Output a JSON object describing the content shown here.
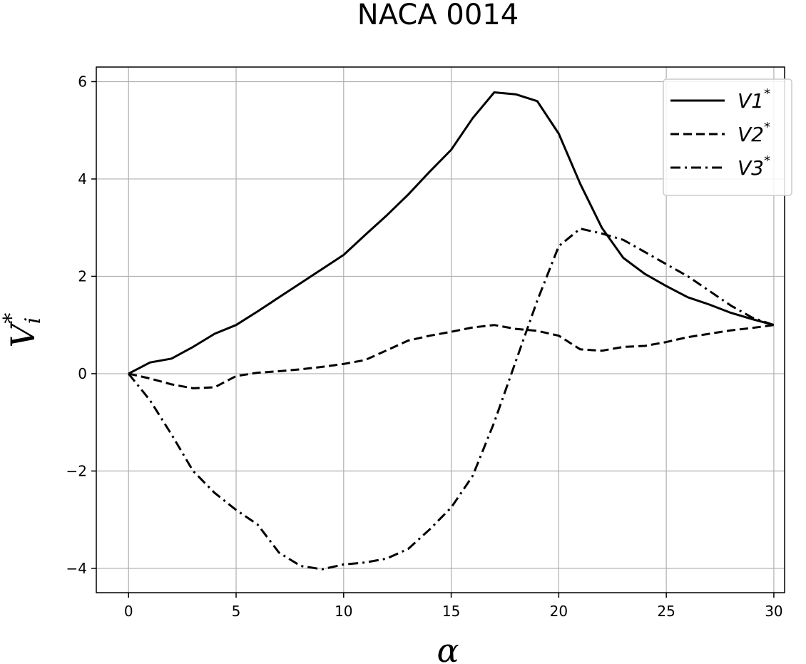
{
  "chart_data": {
    "type": "line",
    "title": "NACA 0014",
    "xlabel": "α",
    "ylabel_base": "V",
    "ylabel_sub": "i",
    "ylabel_sup": "*",
    "xlim": [
      -1.5,
      30.5
    ],
    "ylim": [
      -4.5,
      6.3
    ],
    "xticks": [
      0,
      5,
      10,
      15,
      20,
      25,
      30
    ],
    "xtick_labels": [
      "0",
      "5",
      "10",
      "15",
      "20",
      "25",
      "30"
    ],
    "yticks": [
      -4,
      -2,
      0,
      2,
      4,
      6
    ],
    "ytick_labels": [
      "−4",
      "−2",
      "0",
      "2",
      "4",
      "6"
    ],
    "grid": true,
    "legend_position": "top-right",
    "x": [
      0,
      1,
      2,
      3,
      4,
      5,
      6,
      7,
      8,
      9,
      10,
      11,
      12,
      13,
      14,
      15,
      16,
      17,
      18,
      19,
      20,
      21,
      22,
      23,
      24,
      25,
      26,
      27,
      28,
      29,
      30
    ],
    "series": [
      {
        "name": "V1*",
        "label_base": "V1",
        "label_sup": "*",
        "dash": "solid",
        "color": "#000000",
        "values": [
          0,
          0.23,
          0.31,
          0.55,
          0.82,
          1.0,
          1.28,
          1.57,
          1.86,
          2.15,
          2.44,
          2.85,
          3.25,
          3.68,
          4.15,
          4.6,
          5.25,
          5.78,
          5.74,
          5.6,
          4.93,
          3.9,
          3.0,
          2.38,
          2.05,
          1.8,
          1.57,
          1.42,
          1.25,
          1.12,
          1.0
        ]
      },
      {
        "name": "V2*",
        "label_base": "V2",
        "label_sup": "*",
        "dash": "dashed",
        "color": "#000000",
        "values": [
          0,
          -0.1,
          -0.22,
          -0.3,
          -0.28,
          -0.05,
          0.02,
          0.05,
          0.09,
          0.14,
          0.2,
          0.28,
          0.48,
          0.68,
          0.78,
          0.86,
          0.95,
          1.0,
          0.92,
          0.88,
          0.78,
          0.5,
          0.47,
          0.55,
          0.57,
          0.65,
          0.75,
          0.82,
          0.89,
          0.94,
          1.0
        ]
      },
      {
        "name": "V3*",
        "label_base": "V3",
        "label_sup": "*",
        "dash": "dashdot",
        "color": "#000000",
        "values": [
          0,
          -0.55,
          -1.25,
          -2.0,
          -2.45,
          -2.8,
          -3.1,
          -3.68,
          -3.95,
          -4.02,
          -3.92,
          -3.88,
          -3.8,
          -3.6,
          -3.2,
          -2.75,
          -2.1,
          -1.0,
          0.25,
          1.5,
          2.62,
          2.98,
          2.88,
          2.75,
          2.5,
          2.25,
          2.0,
          1.7,
          1.4,
          1.15,
          1.0
        ]
      }
    ]
  }
}
